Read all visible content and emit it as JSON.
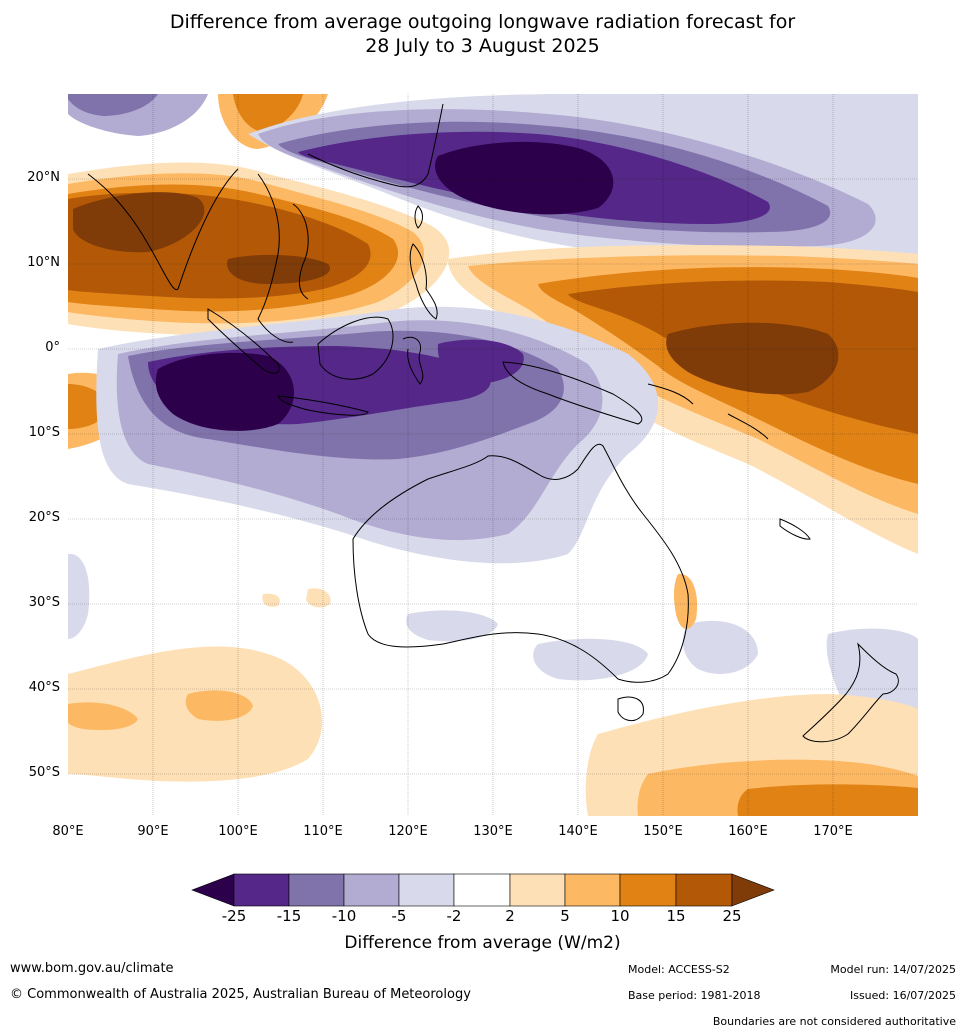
{
  "title_line1": "Difference from average outgoing longwave radiation forecast for",
  "title_line2": "28 July to 3 August 2025",
  "lat_labels": [
    "20°N",
    "10°N",
    "0°",
    "10°S",
    "20°S",
    "30°S",
    "40°S",
    "50°S"
  ],
  "lon_labels": [
    "80°E",
    "90°E",
    "100°E",
    "110°E",
    "120°E",
    "130°E",
    "140°E",
    "150°E",
    "160°E",
    "170°E"
  ],
  "colorbar": {
    "ticks": [
      "-25",
      "-15",
      "-10",
      "-5",
      "-2",
      "2",
      "5",
      "10",
      "15",
      "25"
    ],
    "colors": [
      "#2d004b",
      "#542788",
      "#8073ac",
      "#b2abd2",
      "#d8daeb",
      "#ffffff",
      "#fee0b6",
      "#fdb863",
      "#e08214",
      "#b35806",
      "#7f3b08"
    ],
    "label": "Difference from average (W/m2)"
  },
  "footer": {
    "website": "www.bom.gov.au/climate",
    "copyright": "© Commonwealth of Australia 2025, Australian Bureau of Meteorology",
    "model": "Model: ACCESS-S2",
    "model_run": "Model run: 14/07/2025",
    "base_period": "Base period: 1981-2018",
    "issued": "Issued: 16/07/2025",
    "disclaimer": "Boundaries are not considered authoritative"
  }
}
